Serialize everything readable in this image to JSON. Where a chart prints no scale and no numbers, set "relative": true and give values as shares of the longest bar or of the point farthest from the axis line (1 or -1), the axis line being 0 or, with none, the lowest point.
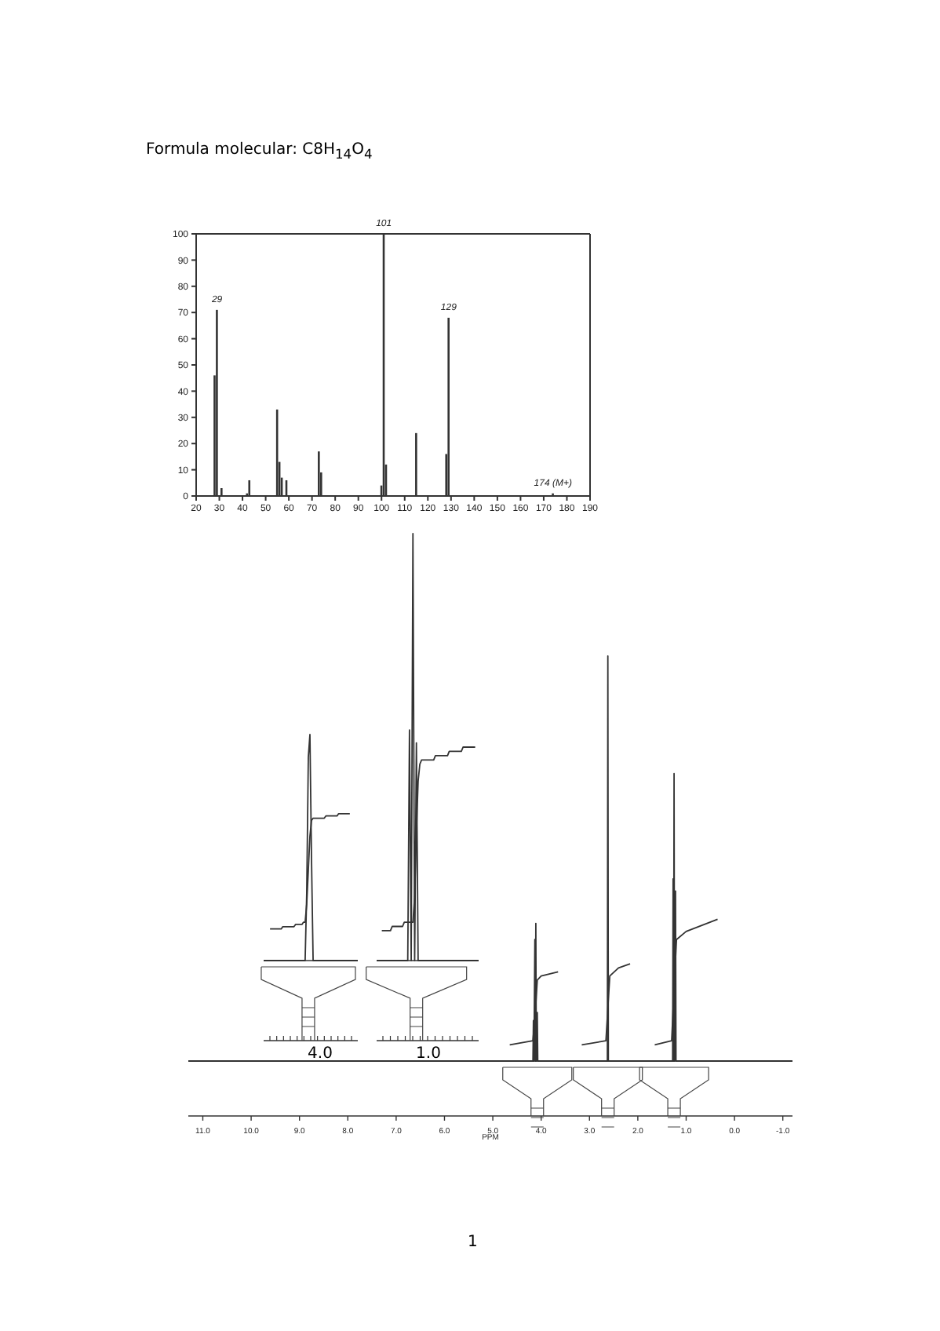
{
  "chart_data": [
    {
      "type": "bar",
      "annotations": [
        "Formula molecular: C8H$_{14}$O$_{4}$",
        {
          "text": "29",
          "x": 29,
          "y": 71
        },
        {
          "text": "101",
          "x": 101,
          "y": 100
        },
        {
          "text": "129",
          "x": 129,
          "y": 68
        },
        {
          "text": "174 (M+)",
          "x": 174,
          "y": 1
        }
      ],
      "x": [
        28,
        29,
        31,
        42,
        43,
        55,
        56,
        57,
        59,
        73,
        74,
        100,
        101,
        102,
        115,
        128,
        129,
        174
      ],
      "values": [
        46,
        71,
        3,
        1,
        6,
        33,
        13,
        7,
        6,
        17,
        9,
        4,
        100,
        12,
        24,
        16,
        68,
        1
      ],
      "color": "#333333",
      "xlim": [
        20,
        190
      ],
      "xticks": [
        20,
        30,
        40,
        50,
        60,
        70,
        80,
        90,
        100,
        110,
        120,
        130,
        140,
        150,
        160,
        170,
        180,
        190
      ],
      "ylim": [
        0,
        100
      ],
      "yticks": [
        0,
        10,
        20,
        30,
        40,
        50,
        60,
        70,
        80,
        90,
        100
      ]
    },
    {
      "type": "line",
      "relative": true,
      "xlabel": "PPM",
      "annotations": [
        "1"
      ],
      "xlim": [
        11.3,
        -1.2
      ],
      "xticks": [
        {
          "value": 11,
          "label": "11.0"
        },
        {
          "value": 10,
          "label": "10.0"
        },
        {
          "value": 9,
          "label": "9.0"
        },
        {
          "value": 8,
          "label": "8.0"
        },
        {
          "value": 7,
          "label": "7.0"
        },
        {
          "value": 6,
          "label": "6.0"
        },
        {
          "value": 5,
          "label": "5.0"
        },
        {
          "value": 4,
          "label": "4.0"
        },
        {
          "value": 3,
          "label": "3.0"
        },
        {
          "value": 2,
          "label": "2.0"
        },
        {
          "value": 1,
          "label": "1.0"
        },
        {
          "value": 0,
          "label": "0.0"
        },
        {
          "value": -1,
          "label": "-1.0"
        }
      ],
      "series": [
        {
          "color": "#333333",
          "x": [
            11.3,
            4.25,
            4.17,
            4.16,
            4.15,
            4.13,
            4.12,
            4.11,
            4.1,
            4.08,
            4.07,
            2.7,
            2.63,
            2.62,
            2.61,
            1.32,
            1.28,
            1.27,
            1.26,
            1.25,
            1.24,
            1.22,
            1.21,
            -1.2
          ],
          "values": [
            0,
            0,
            0,
            0.1,
            0,
            0.3,
            0,
            0.34,
            0,
            0.12,
            0,
            0,
            0,
            1,
            0,
            0,
            0,
            0.45,
            0,
            0.71,
            0,
            0.42,
            0,
            0
          ]
        },
        {
          "color": "#333333",
          "x": [
            4.65,
            4.17,
            4.12,
            4.08,
            4.0,
            3.65,
            3.4,
            3.16,
            2.66,
            2.62,
            2.58,
            2.4,
            2.16,
            1.9,
            1.65,
            1.3,
            1.25,
            1.2,
            1.0,
            0.35
          ],
          "values": [
            0.04,
            0.05,
            0.12,
            0.2,
            0.21,
            0.22,
            null,
            0.04,
            0.05,
            0.13,
            0.21,
            0.23,
            0.24,
            null,
            0.04,
            0.05,
            0.18,
            0.3,
            0.32,
            0.35
          ]
        }
      ]
    },
    {
      "type": "line",
      "relative": true,
      "annotations": [
        "4.0"
      ],
      "categories": [
        null,
        null,
        null,
        null,
        null,
        null,
        null,
        null,
        null,
        null,
        null,
        null,
        null,
        null,
        null,
        null,
        null,
        null,
        null,
        null,
        null,
        null,
        null,
        null,
        null,
        null,
        null,
        null,
        null,
        null,
        null,
        null,
        null,
        null,
        null,
        null,
        null,
        null,
        null,
        null,
        null,
        null,
        null,
        null,
        null,
        null,
        null,
        null,
        null,
        null,
        null,
        null,
        null,
        null,
        null,
        null,
        null,
        null,
        null,
        null
      ],
      "series": [
        {
          "color": "#333333",
          "values": [
            0,
            0,
            0,
            0,
            0,
            0,
            0,
            0,
            0,
            0,
            0,
            0,
            0,
            0,
            0,
            0,
            0,
            0,
            0,
            0,
            0,
            0,
            0,
            0,
            0,
            0,
            0,
            0.3,
            0.9,
            1,
            0.45,
            0,
            0,
            0,
            0,
            0,
            0,
            0,
            0,
            0,
            0,
            0,
            0,
            0,
            0,
            0,
            0,
            0,
            0,
            0,
            0,
            0,
            0,
            0,
            0,
            0,
            0,
            0,
            0,
            0
          ]
        },
        {
          "color": "#333333",
          "values": [
            null,
            null,
            null,
            null,
            0.14,
            0.14,
            0.14,
            0.14,
            0.14,
            0.14,
            0.14,
            0.14,
            0.15,
            0.15,
            0.15,
            0.15,
            0.15,
            0.15,
            0.15,
            0.15,
            0.16,
            0.16,
            0.16,
            0.16,
            0.16,
            0.17,
            0.17,
            0.25,
            0.4,
            0.55,
            0.62,
            0.63,
            0.63,
            0.63,
            0.63,
            0.63,
            0.63,
            0.63,
            0.63,
            0.64,
            0.64,
            0.64,
            0.64,
            0.64,
            0.64,
            0.64,
            0.64,
            0.65,
            0.65,
            0.65,
            0.65,
            0.65,
            0.65,
            0.65,
            0.65,
            null,
            null,
            null,
            null,
            null
          ]
        }
      ]
    },
    {
      "type": "line",
      "relative": true,
      "annotations": [
        "1.0"
      ],
      "categories": [
        null,
        null,
        null,
        null,
        null,
        null,
        null,
        null,
        null,
        null,
        null,
        null,
        null,
        null,
        null,
        null,
        null,
        null,
        null,
        null,
        null,
        null,
        null,
        null,
        null,
        null,
        null,
        null,
        null,
        null,
        null,
        null,
        null,
        null,
        null,
        null,
        null,
        null,
        null,
        null,
        null,
        null,
        null,
        null,
        null,
        null,
        null,
        null,
        null,
        null,
        null,
        null,
        null,
        null,
        null,
        null,
        null,
        null,
        null,
        null
      ],
      "series": [
        {
          "color": "#333333",
          "values": [
            0,
            0,
            0,
            0,
            0,
            0,
            0,
            0,
            0,
            0,
            0,
            0,
            0,
            0,
            0,
            0,
            0,
            0,
            0,
            0.54,
            0,
            1,
            0,
            0.51,
            0,
            0,
            0,
            0,
            0,
            0,
            0,
            0,
            0,
            0,
            0,
            0,
            0,
            0,
            0,
            0,
            0,
            0,
            0,
            0,
            0,
            0,
            0,
            0,
            0,
            0,
            0,
            0,
            0,
            0,
            0,
            0,
            0,
            0,
            0,
            0
          ]
        },
        {
          "color": "#333333",
          "values": [
            null,
            null,
            null,
            0.07,
            0.07,
            0.07,
            0.07,
            0.07,
            0.07,
            0.08,
            0.08,
            0.08,
            0.08,
            0.08,
            0.08,
            0.08,
            0.09,
            0.09,
            0.09,
            0.09,
            0.09,
            0.09,
            0.15,
            0.3,
            0.42,
            0.46,
            0.47,
            0.47,
            0.47,
            0.47,
            0.47,
            0.47,
            0.47,
            0.47,
            0.48,
            0.48,
            0.48,
            0.48,
            0.48,
            0.48,
            0.48,
            0.48,
            0.49,
            0.49,
            0.49,
            0.49,
            0.49,
            0.49,
            0.49,
            0.49,
            0.5,
            0.5,
            0.5,
            0.5,
            0.5,
            0.5,
            0.5,
            0.5,
            null,
            null
          ]
        }
      ]
    }
  ]
}
